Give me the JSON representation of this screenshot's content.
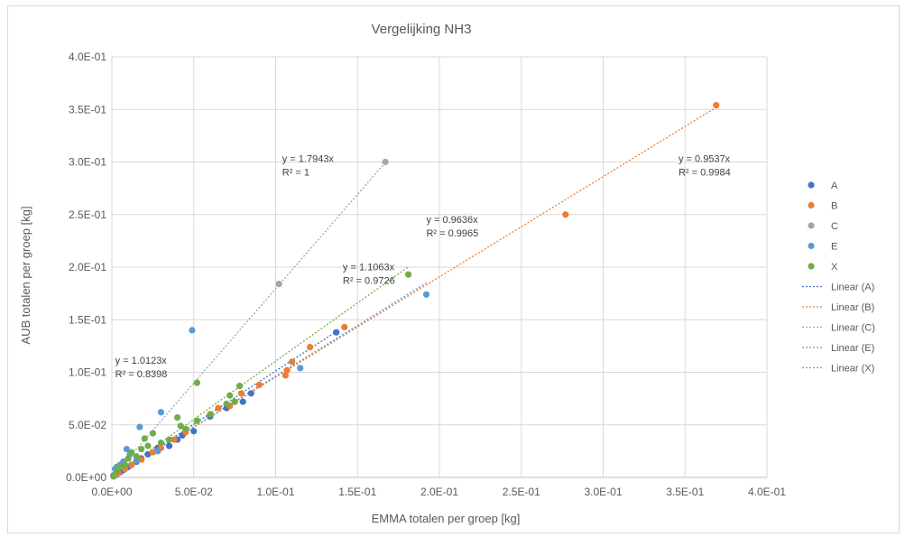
{
  "chart_data": {
    "type": "scatter",
    "title": "Vergelijking NH3",
    "xlabel": "EMMA totalen per groep [kg]",
    "ylabel": "AUB totalen per groep [kg]",
    "xlim": [
      0,
      0.4
    ],
    "ylim": [
      0,
      0.4
    ],
    "x_ticks": [
      "0.0E+00",
      "5.0E-02",
      "1.0E-01",
      "1.5E-01",
      "2.0E-01",
      "2.5E-01",
      "3.0E-01",
      "3.5E-01",
      "4.0E-01"
    ],
    "y_ticks": [
      "0.0E+00",
      "5.0E-02",
      "1.0E-01",
      "1.5E-01",
      "2.0E-01",
      "2.5E-01",
      "3.0E-01",
      "3.5E-01",
      "4.0E-01"
    ],
    "grid": true,
    "legend_position": "right",
    "series": [
      {
        "name": "A",
        "color": "#4472c4",
        "points": [
          [
            0.001,
            0.001
          ],
          [
            0.002,
            0.002
          ],
          [
            0.003,
            0.003
          ],
          [
            0.005,
            0.005
          ],
          [
            0.007,
            0.007
          ],
          [
            0.01,
            0.01
          ],
          [
            0.012,
            0.012
          ],
          [
            0.015,
            0.015
          ],
          [
            0.018,
            0.018
          ],
          [
            0.022,
            0.022
          ],
          [
            0.028,
            0.028
          ],
          [
            0.035,
            0.03
          ],
          [
            0.04,
            0.036
          ],
          [
            0.043,
            0.04
          ],
          [
            0.05,
            0.044
          ],
          [
            0.06,
            0.058
          ],
          [
            0.07,
            0.066
          ],
          [
            0.075,
            0.072
          ],
          [
            0.08,
            0.072
          ],
          [
            0.085,
            0.08
          ],
          [
            0.137,
            0.138
          ]
        ]
      },
      {
        "name": "B",
        "color": "#ed7d31",
        "points": [
          [
            0.002,
            0.002
          ],
          [
            0.004,
            0.004
          ],
          [
            0.008,
            0.008
          ],
          [
            0.012,
            0.012
          ],
          [
            0.018,
            0.017
          ],
          [
            0.025,
            0.024
          ],
          [
            0.03,
            0.028
          ],
          [
            0.038,
            0.036
          ],
          [
            0.045,
            0.043
          ],
          [
            0.06,
            0.06
          ],
          [
            0.065,
            0.066
          ],
          [
            0.072,
            0.068
          ],
          [
            0.079,
            0.08
          ],
          [
            0.09,
            0.088
          ],
          [
            0.106,
            0.097
          ],
          [
            0.107,
            0.102
          ],
          [
            0.11,
            0.11
          ],
          [
            0.121,
            0.124
          ],
          [
            0.142,
            0.143
          ],
          [
            0.277,
            0.25
          ],
          [
            0.369,
            0.354
          ]
        ]
      },
      {
        "name": "C",
        "color": "#a5a5a5",
        "points": [
          [
            0.001,
            0.002
          ],
          [
            0.102,
            0.184
          ],
          [
            0.167,
            0.3
          ]
        ]
      },
      {
        "name": "E",
        "color": "#5b9bd5",
        "points": [
          [
            0.001,
            0.002
          ],
          [
            0.002,
            0.008
          ],
          [
            0.003,
            0.01
          ],
          [
            0.005,
            0.012
          ],
          [
            0.007,
            0.015
          ],
          [
            0.009,
            0.027
          ],
          [
            0.011,
            0.022
          ],
          [
            0.015,
            0.016
          ],
          [
            0.017,
            0.048
          ],
          [
            0.028,
            0.025
          ],
          [
            0.03,
            0.062
          ],
          [
            0.049,
            0.14
          ],
          [
            0.115,
            0.104
          ],
          [
            0.192,
            0.174
          ]
        ]
      },
      {
        "name": "X",
        "color": "#70ad47",
        "points": [
          [
            0.001,
            0.001
          ],
          [
            0.003,
            0.006
          ],
          [
            0.005,
            0.01
          ],
          [
            0.008,
            0.012
          ],
          [
            0.01,
            0.018
          ],
          [
            0.012,
            0.024
          ],
          [
            0.015,
            0.02
          ],
          [
            0.018,
            0.027
          ],
          [
            0.02,
            0.037
          ],
          [
            0.022,
            0.03
          ],
          [
            0.025,
            0.042
          ],
          [
            0.03,
            0.033
          ],
          [
            0.035,
            0.036
          ],
          [
            0.04,
            0.057
          ],
          [
            0.042,
            0.049
          ],
          [
            0.045,
            0.046
          ],
          [
            0.052,
            0.054
          ],
          [
            0.052,
            0.09
          ],
          [
            0.06,
            0.06
          ],
          [
            0.07,
            0.07
          ],
          [
            0.072,
            0.078
          ],
          [
            0.075,
            0.072
          ],
          [
            0.078,
            0.087
          ],
          [
            0.181,
            0.193
          ]
        ]
      }
    ],
    "trendlines": [
      {
        "name": "Linear (A)",
        "color": "#4472c4",
        "slope": 1.0123,
        "x_end": 0.137,
        "equation": "y = 1.0123x",
        "r2": "R² = 0.8398"
      },
      {
        "name": "Linear (B)",
        "color": "#ed7d31",
        "slope": 0.9537,
        "x_end": 0.369,
        "equation": "y = 0.9537x",
        "r2": "R² = 0.9984"
      },
      {
        "name": "Linear (C)",
        "color": "#a5a5a5",
        "slope": 1.7943,
        "x_end": 0.167,
        "equation": "y = 1.7943x",
        "r2": "R² = 1"
      },
      {
        "name": "Linear (E)",
        "color": "#5b9bd5",
        "slope": 0.9636,
        "x_end": 0.192,
        "equation": "y = 0.9636x",
        "r2": "R² = 0.9965"
      },
      {
        "name": "Linear (X)",
        "color": "#70ad47",
        "slope": 1.1063,
        "x_end": 0.181,
        "equation": "y = 1.1063x",
        "r2": "R² = 0.9726"
      }
    ]
  }
}
